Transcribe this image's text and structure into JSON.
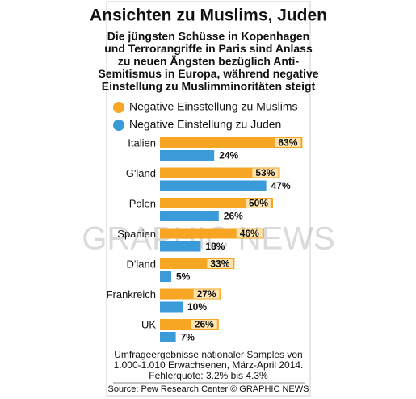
{
  "chart_data": {
    "type": "hbar",
    "title": "Ansichten zu Muslims, Juden",
    "subtitle": [
      "Die jüngsten Schüsse in Kopenhagen",
      "und Terrorangriffe in Paris sind Anlass",
      "zu neuen Ängsten bezüglich Anti-",
      "Semitismus in Europa, während negative",
      "Einstellung zu Muslimminoritäten steigt"
    ],
    "categories": [
      "Italien",
      "G'land",
      "Polen",
      "Spanien",
      "D'land",
      "Frankreich",
      "UK"
    ],
    "series": [
      {
        "name": "Negative Einsstellung zu Muslims",
        "color": "#f6a623",
        "values": [
          63,
          53,
          50,
          46,
          33,
          27,
          26
        ],
        "value_labels": [
          "63%",
          "53%",
          "50%",
          "46%",
          "33%",
          "27%",
          "26%"
        ]
      },
      {
        "name": "Negative Einstellung zu Juden",
        "color": "#3b9bd8",
        "values": [
          24,
          47,
          26,
          18,
          5,
          10,
          7
        ],
        "value_labels": [
          "24%",
          "47%",
          "26%",
          "18%",
          "5%",
          "10%",
          "7%"
        ]
      }
    ],
    "watermark": "GRAPHIC NEWS",
    "footnote": [
      "Umfrageergebnisse nationaler Samples von",
      "1.000-1.010 Erwachsenen, März-April 2014.",
      "Fehlerquote: 3.2% bis 4.3%"
    ],
    "source": "Source: Pew Research Center © GRAPHIC NEWS"
  }
}
